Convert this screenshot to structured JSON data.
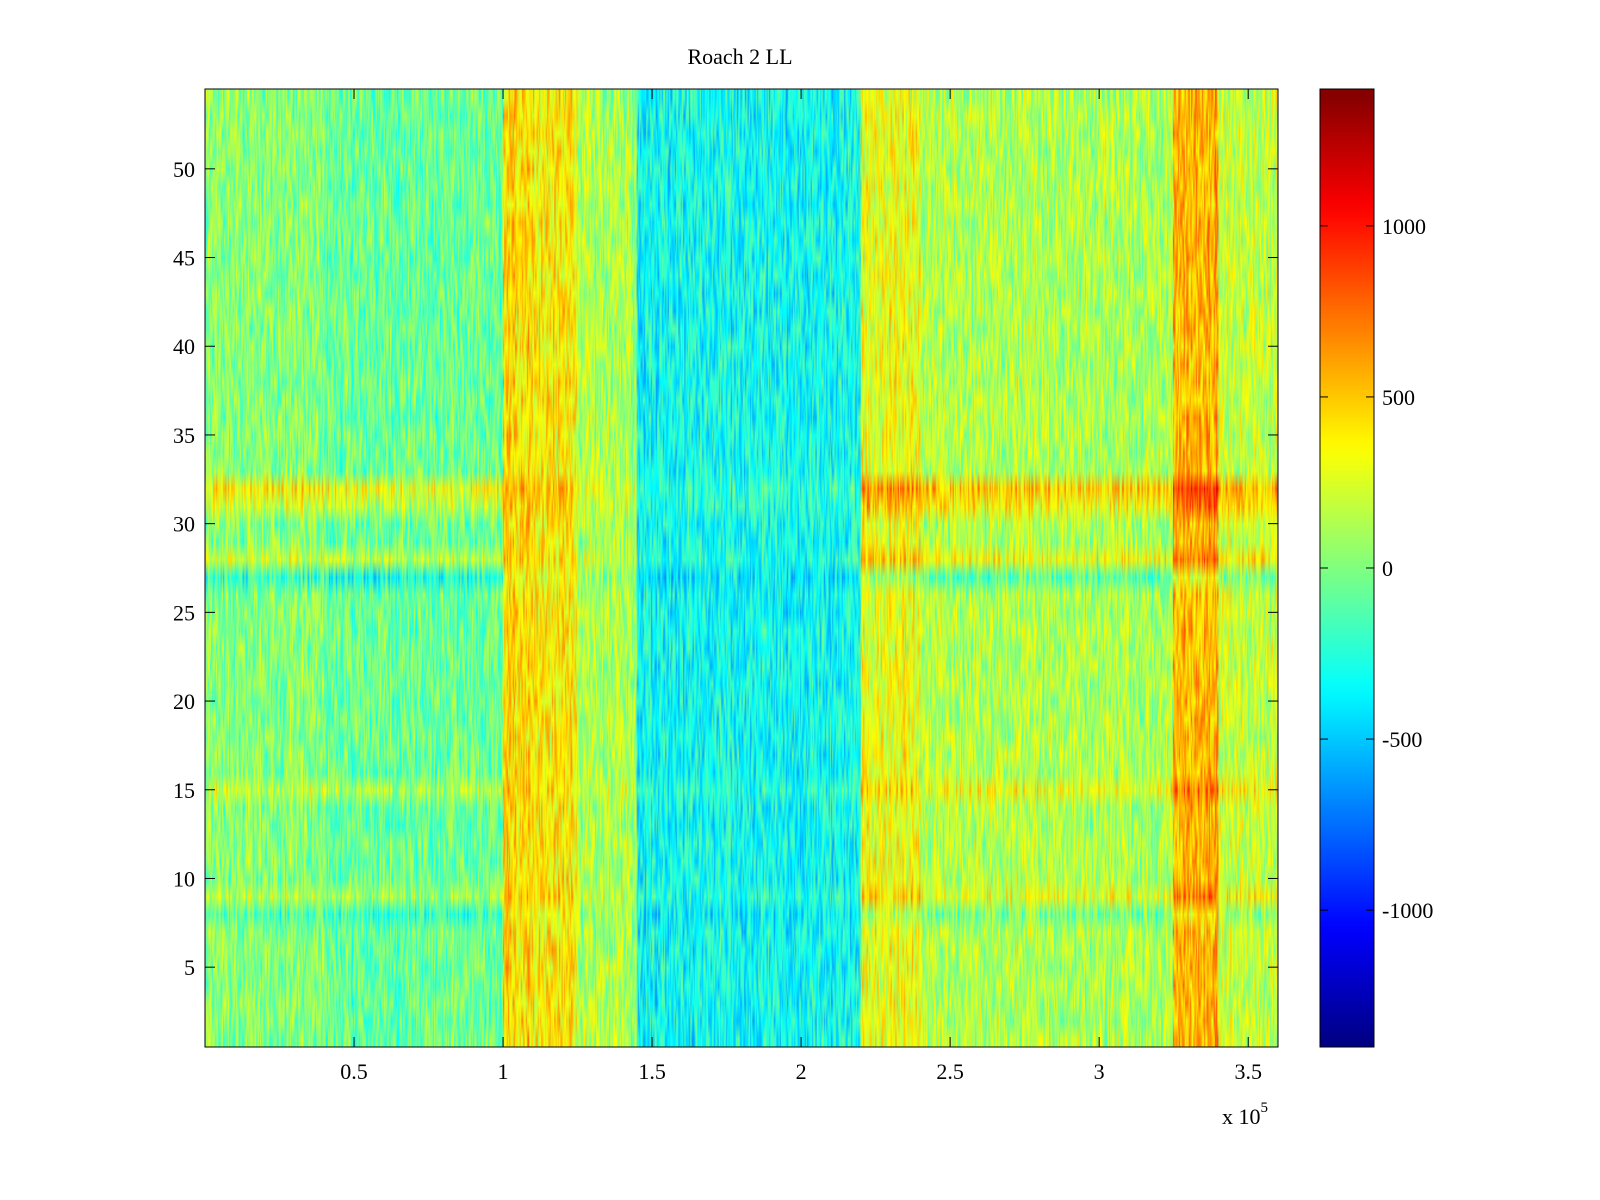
{
  "chart_data": {
    "type": "heatmap",
    "title": "Roach 2 LL",
    "xlabel": "",
    "ylabel": "",
    "x_exponent_label": "x 10",
    "x_exponent": "5",
    "xlim": [
      0,
      3.6
    ],
    "ylim": [
      0.5,
      54.5
    ],
    "x_ticks": [
      {
        "value": 0.5,
        "label": "0.5"
      },
      {
        "value": 1,
        "label": "1"
      },
      {
        "value": 1.5,
        "label": "1.5"
      },
      {
        "value": 2,
        "label": "2"
      },
      {
        "value": 2.5,
        "label": "2.5"
      },
      {
        "value": 3,
        "label": "3"
      },
      {
        "value": 3.5,
        "label": "3.5"
      }
    ],
    "y_ticks": [
      {
        "value": 5,
        "label": "5"
      },
      {
        "value": 10,
        "label": "10"
      },
      {
        "value": 15,
        "label": "15"
      },
      {
        "value": 20,
        "label": "20"
      },
      {
        "value": 25,
        "label": "25"
      },
      {
        "value": 30,
        "label": "30"
      },
      {
        "value": 35,
        "label": "35"
      },
      {
        "value": 40,
        "label": "40"
      },
      {
        "value": 45,
        "label": "45"
      },
      {
        "value": 50,
        "label": "50"
      }
    ],
    "colorbar": {
      "colormap": "jet",
      "range": [
        -1400,
        1400
      ],
      "ticks": [
        {
          "value": 1000,
          "label": "1000"
        },
        {
          "value": 500,
          "label": "500"
        },
        {
          "value": 0,
          "label": "0"
        },
        {
          "value": -500,
          "label": "-500"
        },
        {
          "value": -1000,
          "label": "-1000"
        }
      ]
    },
    "rows": 54,
    "column_bands": [
      {
        "x_start": 0.0,
        "x_end": 0.4,
        "mean": 20
      },
      {
        "x_start": 0.4,
        "x_end": 1.0,
        "mean": -60
      },
      {
        "x_start": 1.0,
        "x_end": 1.1,
        "mean": 450
      },
      {
        "x_start": 1.1,
        "x_end": 1.25,
        "mean": 380
      },
      {
        "x_start": 1.25,
        "x_end": 1.45,
        "mean": 120
      },
      {
        "x_start": 1.45,
        "x_end": 2.2,
        "mean": -320
      },
      {
        "x_start": 2.2,
        "x_end": 2.4,
        "mean": 300
      },
      {
        "x_start": 2.4,
        "x_end": 3.25,
        "mean": 130
      },
      {
        "x_start": 3.25,
        "x_end": 3.4,
        "mean": 550
      },
      {
        "x_start": 3.4,
        "x_end": 3.6,
        "mean": 200
      }
    ],
    "row_offsets": [
      {
        "row": 32,
        "offset": 350
      },
      {
        "row": 31,
        "offset": 220
      },
      {
        "row": 28,
        "offset": 200
      },
      {
        "row": 27,
        "offset": -250
      },
      {
        "row": 15,
        "offset": 180
      },
      {
        "row": 8,
        "offset": -150
      },
      {
        "row": 9,
        "offset": 150
      }
    ],
    "noise_amplitude": 260
  }
}
